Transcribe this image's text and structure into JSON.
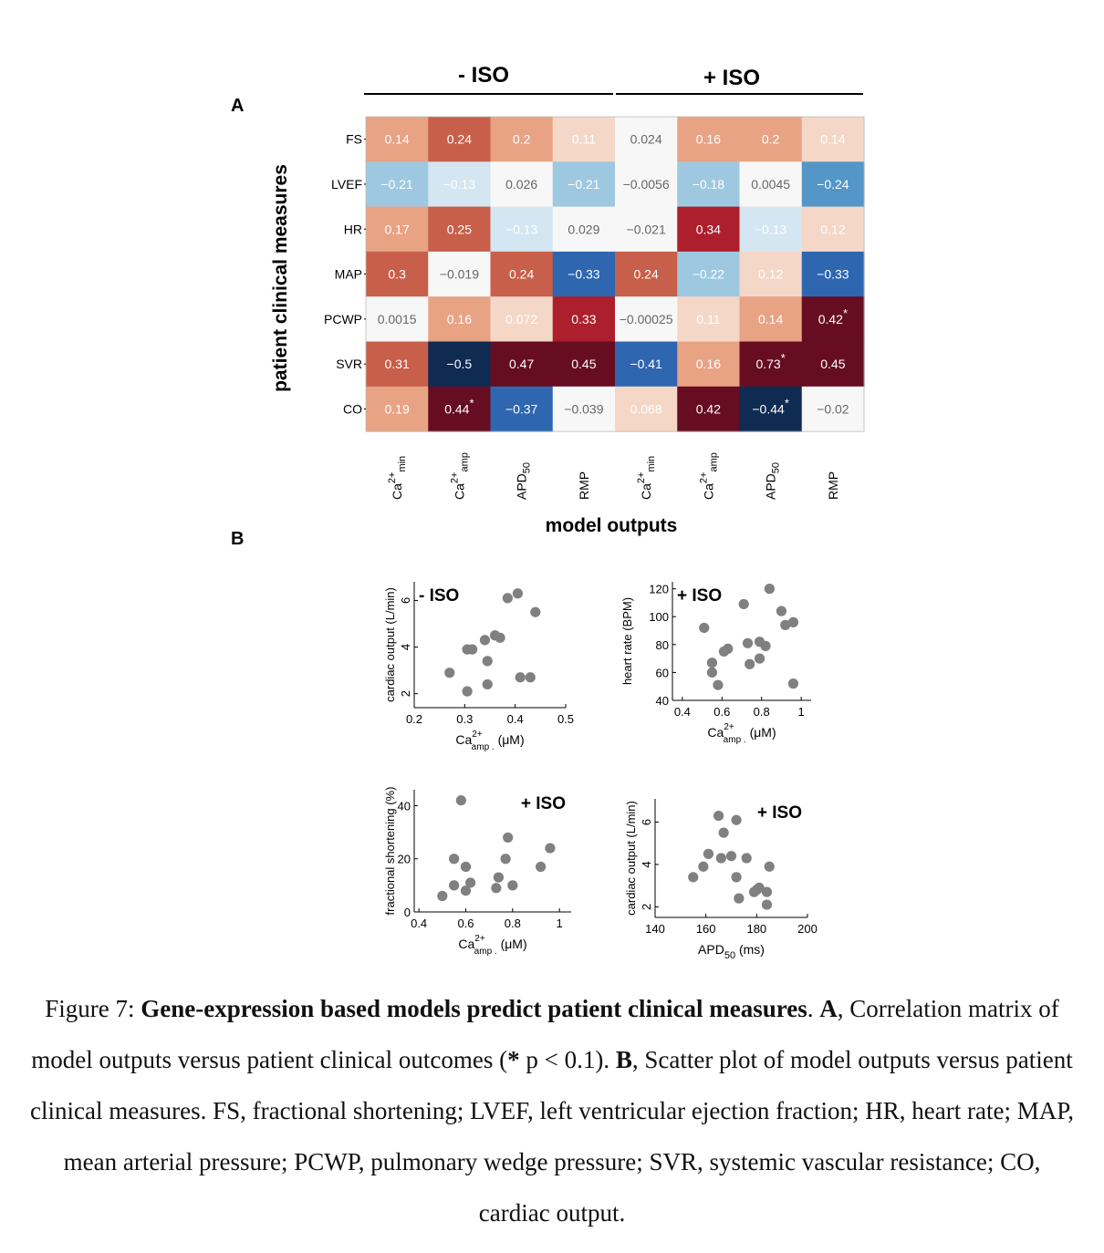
{
  "panel_a_label": "A",
  "panel_b_label": "B",
  "heatmap": {
    "group_labels": [
      "- ISO",
      "+ ISO"
    ],
    "rows": [
      "FS",
      "LVEF",
      "HR",
      "MAP",
      "PCWP",
      "SVR",
      "CO"
    ],
    "columns": [
      {
        "base": "Ca",
        "sup": "2+",
        "sub": "min"
      },
      {
        "base": "Ca",
        "sup": "2+",
        "sub": "amp"
      },
      {
        "base": "APD",
        "sup": "",
        "sub": "50"
      },
      {
        "base": "RMP",
        "sup": "",
        "sub": ""
      },
      {
        "base": "Ca",
        "sup": "2+",
        "sub": "min"
      },
      {
        "base": "Ca",
        "sup": "2+",
        "sub": "amp"
      },
      {
        "base": "APD",
        "sup": "",
        "sub": "50"
      },
      {
        "base": "RMP",
        "sup": "",
        "sub": ""
      }
    ],
    "cells": [
      [
        {
          "t": "0.14",
          "c": "#e8a385"
        },
        {
          "t": "0.24",
          "c": "#c85f4a"
        },
        {
          "t": "0.2",
          "c": "#e8a385"
        },
        {
          "t": "0.11",
          "c": "#f5d7c8"
        },
        {
          "t": "0.024",
          "c": "#f7f7f7"
        },
        {
          "t": "0.16",
          "c": "#e8a385"
        },
        {
          "t": "0.2",
          "c": "#e8a385"
        },
        {
          "t": "0.14",
          "c": "#f5d7c8"
        }
      ],
      [
        {
          "t": "−0.21",
          "c": "#9ec8e0"
        },
        {
          "t": "−0.13",
          "c": "#d4e6f1"
        },
        {
          "t": "0.026",
          "c": "#f7f7f7"
        },
        {
          "t": "−0.21",
          "c": "#9ec8e0"
        },
        {
          "t": "−0.0056",
          "c": "#f7f7f7"
        },
        {
          "t": "−0.18",
          "c": "#9ec8e0"
        },
        {
          "t": "0.0045",
          "c": "#f7f7f7"
        },
        {
          "t": "−0.24",
          "c": "#5596c8"
        }
      ],
      [
        {
          "t": "0.17",
          "c": "#e8a385"
        },
        {
          "t": "0.25",
          "c": "#c85f4a"
        },
        {
          "t": "−0.13",
          "c": "#d4e6f1"
        },
        {
          "t": "0.029",
          "c": "#f7f7f7"
        },
        {
          "t": "−0.021",
          "c": "#f7f7f7"
        },
        {
          "t": "0.34",
          "c": "#ad1f2c"
        },
        {
          "t": "−0.13",
          "c": "#d4e6f1"
        },
        {
          "t": "0.12",
          "c": "#f5d7c8"
        }
      ],
      [
        {
          "t": "0.3",
          "c": "#c85f4a"
        },
        {
          "t": "−0.019",
          "c": "#f7f7f7"
        },
        {
          "t": "0.24",
          "c": "#c85f4a"
        },
        {
          "t": "−0.33",
          "c": "#2e66b0"
        },
        {
          "t": "0.24",
          "c": "#c85f4a"
        },
        {
          "t": "−0.22",
          "c": "#9ec8e0"
        },
        {
          "t": "0.12",
          "c": "#f5d7c8"
        },
        {
          "t": "−0.33",
          "c": "#2e66b0"
        }
      ],
      [
        {
          "t": "0.0015",
          "c": "#f7f7f7"
        },
        {
          "t": "0.16",
          "c": "#e8a385"
        },
        {
          "t": "0.072",
          "c": "#f5d7c8"
        },
        {
          "t": "0.33",
          "c": "#ad1f2c"
        },
        {
          "t": "−0.00025",
          "c": "#f7f7f7"
        },
        {
          "t": "0.11",
          "c": "#f5d7c8"
        },
        {
          "t": "0.14",
          "c": "#e8a385"
        },
        {
          "t": "0.42",
          "c": "#660d21",
          "star": true
        }
      ],
      [
        {
          "t": "0.31",
          "c": "#c85f4a"
        },
        {
          "t": "−0.5",
          "c": "#0f2b52"
        },
        {
          "t": "0.47",
          "c": "#660d21"
        },
        {
          "t": "0.45",
          "c": "#660d21"
        },
        {
          "t": "−0.41",
          "c": "#2e66b0"
        },
        {
          "t": "0.16",
          "c": "#e8a385"
        },
        {
          "t": "0.73",
          "c": "#660d21",
          "star": true
        },
        {
          "t": "0.45",
          "c": "#660d21"
        }
      ],
      [
        {
          "t": "0.19",
          "c": "#e8a385"
        },
        {
          "t": "0.44",
          "c": "#660d21",
          "star": true
        },
        {
          "t": "−0.37",
          "c": "#2e66b0"
        },
        {
          "t": "−0.039",
          "c": "#f7f7f7"
        },
        {
          "t": "0.068",
          "c": "#f5d7c8"
        },
        {
          "t": "0.42",
          "c": "#660d21"
        },
        {
          "t": "−0.44",
          "c": "#0f2b52",
          "star": true
        },
        {
          "t": "−0.02",
          "c": "#f7f7f7"
        }
      ]
    ],
    "ylabel": "patient clinical measures",
    "xlabel": "model outputs",
    "star_symbol": "*"
  },
  "chart_data": [
    {
      "type": "scatter",
      "annotation": "- ISO",
      "xlabel": {
        "base": "Ca",
        "sup": "2+",
        "sub": "amp .",
        "unit": "(μM)"
      },
      "ylabel": "cardiac output (L/min)",
      "xlim": [
        0.2,
        0.5
      ],
      "ylim": [
        1.4,
        6.8
      ],
      "xticks": [
        0.2,
        0.3,
        0.4,
        0.5
      ],
      "xtick_labels": [
        "0.2",
        "0.3",
        "0.4",
        "0.5"
      ],
      "yticks": [
        2,
        4,
        6
      ],
      "ytick_labels": [
        "2",
        "4",
        "6"
      ],
      "points": [
        [
          0.27,
          2.9
        ],
        [
          0.305,
          2.1
        ],
        [
          0.305,
          3.9
        ],
        [
          0.315,
          3.9
        ],
        [
          0.34,
          4.3
        ],
        [
          0.345,
          3.4
        ],
        [
          0.345,
          2.4
        ],
        [
          0.36,
          4.5
        ],
        [
          0.37,
          4.4
        ],
        [
          0.385,
          6.1
        ],
        [
          0.405,
          6.3
        ],
        [
          0.41,
          2.7
        ],
        [
          0.43,
          2.7
        ],
        [
          0.44,
          5.5
        ]
      ]
    },
    {
      "type": "scatter",
      "annotation": "+ ISO",
      "xlabel": {
        "base": "Ca",
        "sup": "2+",
        "sub": "amp .",
        "unit": "(μM)"
      },
      "ylabel": "heart rate (BPM)",
      "xlim": [
        0.35,
        1.05
      ],
      "ylim": [
        40,
        125
      ],
      "xticks": [
        0.4,
        0.6,
        0.8,
        1
      ],
      "xtick_labels": [
        "0.4",
        "0.6",
        "0.8",
        "1"
      ],
      "yticks": [
        40,
        60,
        80,
        100,
        120
      ],
      "ytick_labels": [
        "40",
        "60",
        "80",
        "100",
        "120"
      ],
      "points": [
        [
          0.51,
          92
        ],
        [
          0.55,
          67
        ],
        [
          0.55,
          60
        ],
        [
          0.58,
          51
        ],
        [
          0.61,
          75
        ],
        [
          0.63,
          77
        ],
        [
          0.71,
          109
        ],
        [
          0.73,
          81
        ],
        [
          0.74,
          66
        ],
        [
          0.79,
          82
        ],
        [
          0.79,
          70
        ],
        [
          0.82,
          79
        ],
        [
          0.84,
          120
        ],
        [
          0.9,
          104
        ],
        [
          0.92,
          94
        ],
        [
          0.96,
          96
        ],
        [
          0.96,
          52
        ]
      ]
    },
    {
      "type": "scatter",
      "annotation": "+ ISO",
      "xlabel": {
        "base": "Ca",
        "sup": "2+",
        "sub": "amp .",
        "unit": "(μM)"
      },
      "ylabel": "fractional shortening (%)",
      "xlim": [
        0.38,
        1.05
      ],
      "ylim": [
        0,
        46
      ],
      "xticks": [
        0.4,
        0.6,
        0.8,
        1
      ],
      "xtick_labels": [
        "0.4",
        "0.6",
        "0.8",
        "1"
      ],
      "yticks": [
        0,
        20,
        40
      ],
      "ytick_labels": [
        "0",
        "20",
        "40"
      ],
      "points": [
        [
          0.5,
          6
        ],
        [
          0.55,
          10
        ],
        [
          0.55,
          20
        ],
        [
          0.58,
          42
        ],
        [
          0.6,
          8
        ],
        [
          0.6,
          17
        ],
        [
          0.62,
          11
        ],
        [
          0.73,
          9
        ],
        [
          0.74,
          13
        ],
        [
          0.77,
          20
        ],
        [
          0.78,
          28
        ],
        [
          0.8,
          10
        ],
        [
          0.92,
          17
        ],
        [
          0.96,
          24
        ]
      ]
    },
    {
      "type": "scatter",
      "annotation": "+ ISO",
      "xlabel": {
        "base": "APD",
        "sup": "",
        "sub": "50",
        "unit": "(ms)"
      },
      "ylabel": "cardiac output (L/min)",
      "xlim": [
        140,
        200
      ],
      "ylim": [
        1.5,
        7.1
      ],
      "xticks": [
        140,
        160,
        180,
        200
      ],
      "xtick_labels": [
        "140",
        "160",
        "180",
        "200"
      ],
      "yticks": [
        2,
        4,
        6
      ],
      "ytick_labels": [
        "2",
        "4",
        "6"
      ],
      "points": [
        [
          155,
          3.4
        ],
        [
          159,
          3.9
        ],
        [
          161,
          4.5
        ],
        [
          165,
          6.3
        ],
        [
          166,
          4.3
        ],
        [
          167,
          5.5
        ],
        [
          170,
          4.4
        ],
        [
          172,
          6.1
        ],
        [
          172,
          3.4
        ],
        [
          173,
          2.4
        ],
        [
          176,
          4.3
        ],
        [
          179,
          2.7
        ],
        [
          180,
          2.8
        ],
        [
          181,
          2.9
        ],
        [
          184,
          2.7
        ],
        [
          184,
          2.1
        ],
        [
          185,
          3.9
        ]
      ]
    }
  ],
  "caption": {
    "figure_label": "Figure   7: ",
    "title": "Gene-expression based models predict patient clinical measures",
    "after_title": ". ",
    "a_label": "A",
    "a_text": ", Correlation matrix of model outputs versus patient clinical outcomes (",
    "star": "*",
    "p_text": " p < 0.1). ",
    "b_label": "B",
    "b_text": ", Scatter plot of model outputs versus patient clinical measures. FS, fractional shortening; LVEF, left ventricular ejection fraction; HR, heart rate; MAP, mean arterial pressure; PCWP, pulmonary wedge pressure; SVR, systemic vascular resistance; CO, cardiac output."
  }
}
